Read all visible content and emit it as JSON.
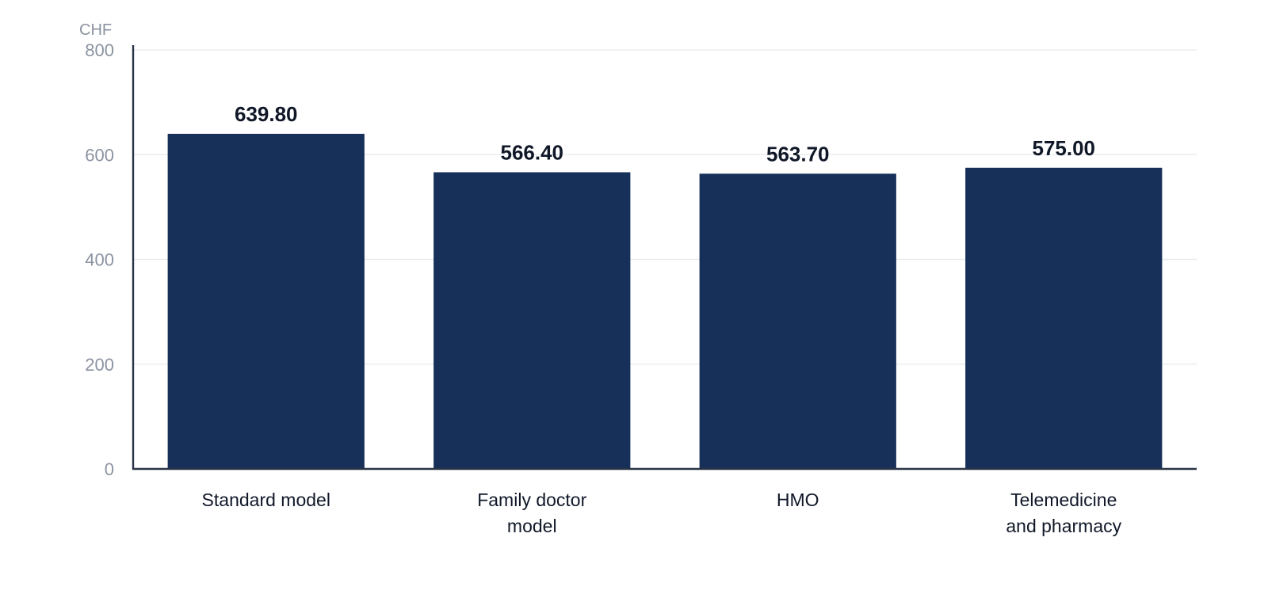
{
  "chart_data": {
    "type": "bar",
    "title": "",
    "xlabel": "",
    "ylabel": "CHF",
    "ylim": [
      0,
      800
    ],
    "yticks": [
      0,
      200,
      400,
      600,
      800
    ],
    "grid": true,
    "bar_color": "#17305a",
    "categories": [
      [
        "Standard model"
      ],
      [
        "Family doctor",
        "model"
      ],
      [
        "HMO"
      ],
      [
        "Telemedicine",
        "and pharmacy"
      ]
    ],
    "values": [
      639.8,
      566.4,
      563.7,
      575.0
    ],
    "data_labels": [
      "639.80",
      "566.40",
      "563.70",
      "575.00"
    ]
  }
}
